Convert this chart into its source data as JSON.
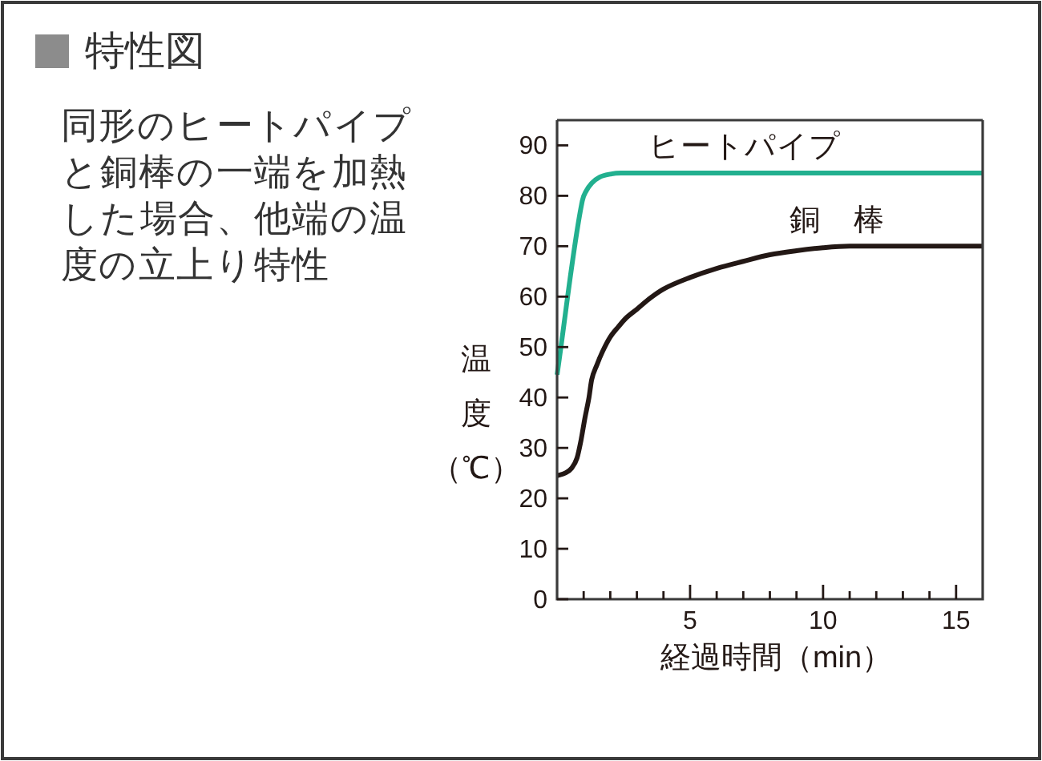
{
  "chart_data": {
    "type": "line",
    "title": "特性図",
    "subtitle": "同形のヒートパイプと銅棒の一端を加熱した場合、他端の温度の立上り特性",
    "xlabel": "経過時間（min）",
    "ylabel": "温度（℃）",
    "xlim": [
      0,
      16
    ],
    "ylim": [
      0,
      95
    ],
    "xticks": [
      {
        "value": 1,
        "label": null
      },
      {
        "value": 2,
        "label": null
      },
      {
        "value": 3,
        "label": null
      },
      {
        "value": 4,
        "label": null
      },
      5,
      {
        "value": 6,
        "label": null
      },
      {
        "value": 7,
        "label": null
      },
      {
        "value": 8,
        "label": null
      },
      {
        "value": 9,
        "label": null
      },
      10,
      {
        "value": 11,
        "label": null
      },
      {
        "value": 12,
        "label": null
      },
      {
        "value": 13,
        "label": null
      },
      {
        "value": 14,
        "label": null
      },
      15
    ],
    "yticks": [
      0,
      10,
      20,
      30,
      40,
      50,
      60,
      70,
      80,
      90
    ],
    "grid": false,
    "legend": false,
    "marker": "none",
    "line_style": "solid",
    "series": [
      {
        "name": "ヒートパイプ",
        "color": "#22b08f",
        "x": [
          0,
          0.95,
          1.1,
          1.3,
          1.6,
          2.0,
          2.4,
          16
        ],
        "values": [
          44.5,
          79,
          81,
          82.5,
          83.7,
          84.3,
          84.5,
          84.5
        ]
      },
      {
        "name": "銅　棒",
        "color": "#231815",
        "x": [
          0,
          0.3,
          0.55,
          0.75,
          0.9,
          1.05,
          1.2,
          1.3,
          1.5,
          1.7,
          2.0,
          2.3,
          2.6,
          3.0,
          3.5,
          4,
          5,
          6,
          7,
          8,
          9,
          10,
          11,
          16
        ],
        "values": [
          24.5,
          25,
          26,
          28,
          31.5,
          36,
          40,
          43.5,
          46.5,
          49,
          52,
          54,
          55.8,
          57.5,
          59.7,
          61.5,
          63.8,
          65.6,
          67,
          68.3,
          69.1,
          69.7,
          70,
          70
        ]
      }
    ]
  }
}
